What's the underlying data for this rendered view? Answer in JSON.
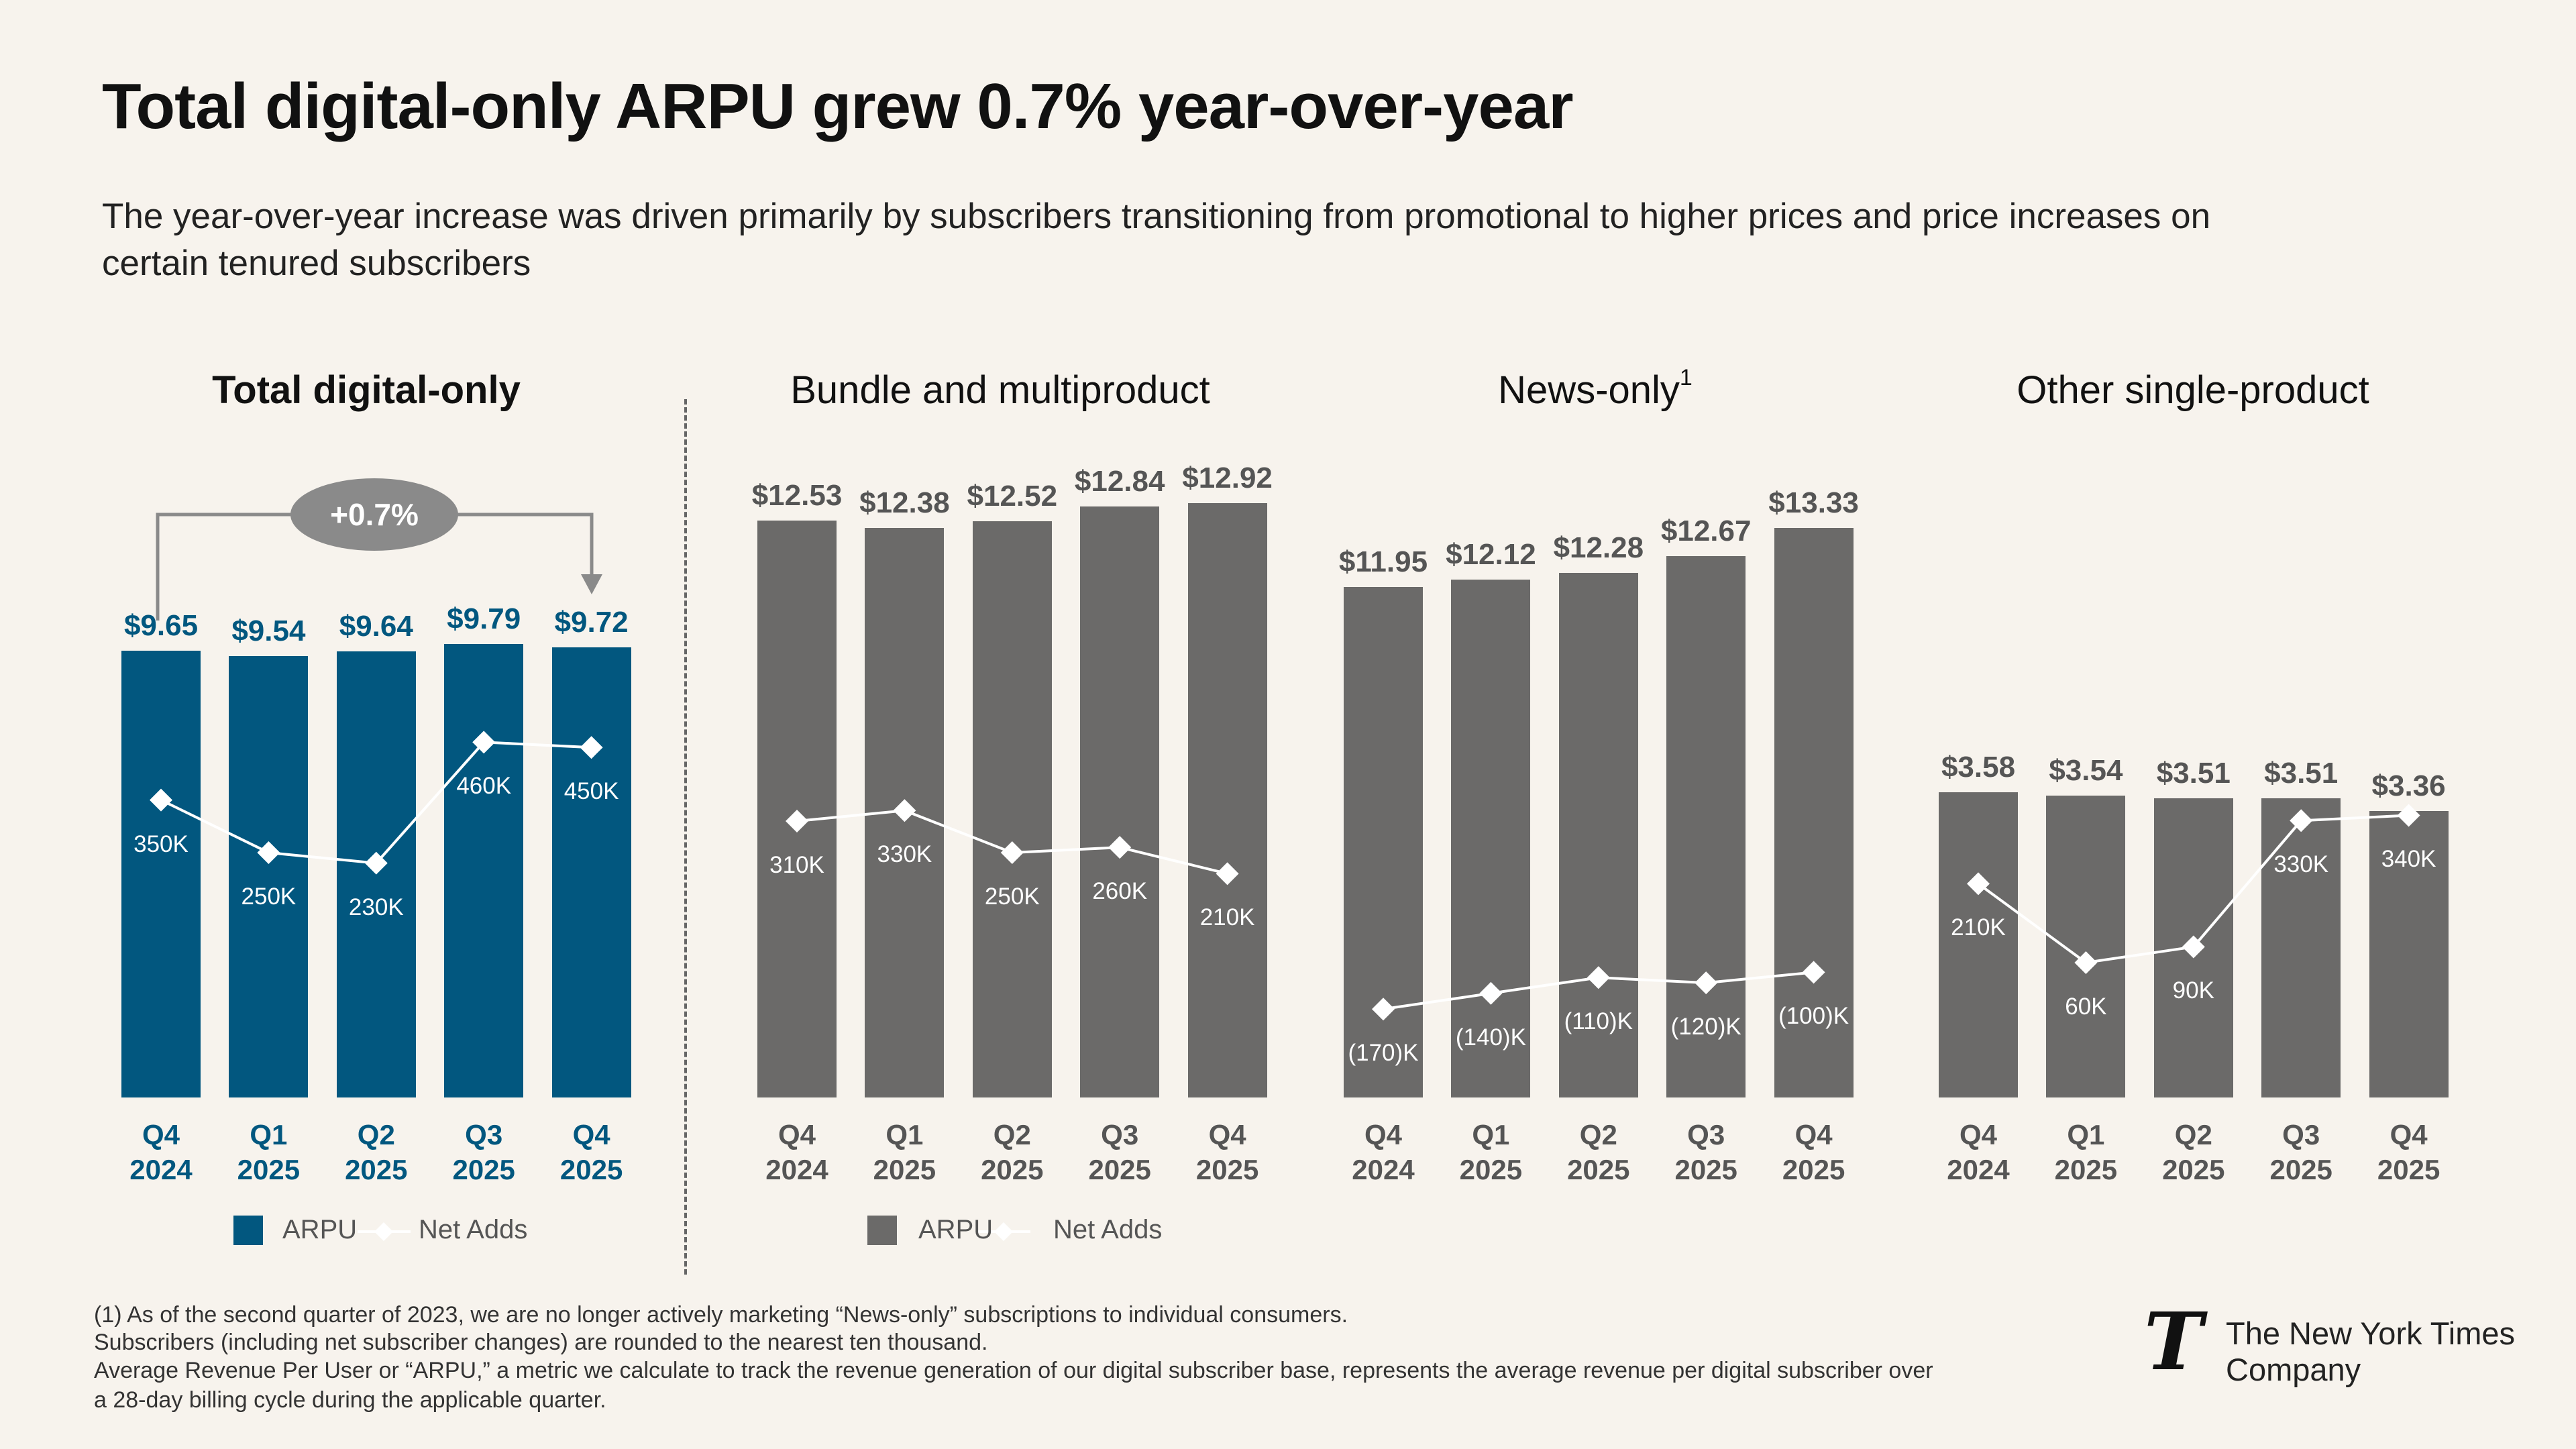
{
  "title": "Total digital-only ARPU grew 0.7% year-over-year",
  "subtitle_lines": [
    "The year-over-year increase was driven primarily by subscribers transitioning from promotional to higher prices and price increases on",
    "certain tenured subscribers"
  ],
  "growth_badge": "+0.7%",
  "legend": {
    "arpu": "ARPU",
    "net_adds": "Net Adds"
  },
  "colors": {
    "total_bars": "#02577f",
    "segment_bars": "#6b6a69",
    "net_adds_line": "#ffffff",
    "background": "#f7f3ed",
    "badge": "#8a8a8a"
  },
  "chart_data": [
    {
      "type": "bar+line",
      "title": "Total digital-only",
      "categories": [
        [
          "Q4",
          "2024"
        ],
        [
          "Q1",
          "2025"
        ],
        [
          "Q2",
          "2025"
        ],
        [
          "Q3",
          "2025"
        ],
        [
          "Q4",
          "2025"
        ]
      ],
      "series": [
        {
          "name": "ARPU",
          "type": "bar",
          "values": [
            9.65,
            9.54,
            9.64,
            9.79,
            9.72
          ],
          "labels": [
            "$9.65",
            "$9.54",
            "$9.64",
            "$9.79",
            "$9.72"
          ]
        },
        {
          "name": "Net Adds",
          "type": "line",
          "unit": "K",
          "values": [
            350,
            250,
            230,
            460,
            450
          ],
          "labels": [
            "350K",
            "250K",
            "230K",
            "460K",
            "450K"
          ]
        }
      ]
    },
    {
      "type": "bar+line",
      "title": "Bundle and multiproduct",
      "categories": [
        [
          "Q4",
          "2024"
        ],
        [
          "Q1",
          "2025"
        ],
        [
          "Q2",
          "2025"
        ],
        [
          "Q3",
          "2025"
        ],
        [
          "Q4",
          "2025"
        ]
      ],
      "series": [
        {
          "name": "ARPU",
          "type": "bar",
          "values": [
            12.53,
            12.38,
            12.52,
            12.84,
            12.92
          ],
          "labels": [
            "$12.53",
            "$12.38",
            "$12.52",
            "$12.84",
            "$12.92"
          ]
        },
        {
          "name": "Net Adds",
          "type": "line",
          "unit": "K",
          "values": [
            310,
            330,
            250,
            260,
            210
          ],
          "labels": [
            "310K",
            "330K",
            "250K",
            "260K",
            "210K"
          ]
        }
      ]
    },
    {
      "type": "bar+line",
      "title": "News-only",
      "title_footnote": "1",
      "categories": [
        [
          "Q4",
          "2024"
        ],
        [
          "Q1",
          "2025"
        ],
        [
          "Q2",
          "2025"
        ],
        [
          "Q3",
          "2025"
        ],
        [
          "Q4",
          "2025"
        ]
      ],
      "series": [
        {
          "name": "ARPU",
          "type": "bar",
          "values": [
            11.95,
            12.12,
            12.28,
            12.67,
            13.33
          ],
          "labels": [
            "$11.95",
            "$12.12",
            "$12.28",
            "$12.67",
            "$13.33"
          ]
        },
        {
          "name": "Net Adds",
          "type": "line",
          "unit": "K",
          "values": [
            -170,
            -140,
            -110,
            -120,
            -100
          ],
          "labels": [
            "(170)K",
            "(140)K",
            "(110)K",
            "(120)K",
            "(100)K"
          ]
        }
      ]
    },
    {
      "type": "bar+line",
      "title": "Other single-product",
      "categories": [
        [
          "Q4",
          "2024"
        ],
        [
          "Q1",
          "2025"
        ],
        [
          "Q2",
          "2025"
        ],
        [
          "Q3",
          "2025"
        ],
        [
          "Q4",
          "2025"
        ]
      ],
      "series": [
        {
          "name": "ARPU",
          "type": "bar",
          "values": [
            3.58,
            3.54,
            3.51,
            3.51,
            3.36
          ],
          "labels": [
            "$3.58",
            "$3.54",
            "$3.51",
            "$3.51",
            "$3.36"
          ]
        },
        {
          "name": "Net Adds",
          "type": "line",
          "unit": "K",
          "values": [
            210,
            60,
            90,
            330,
            340
          ],
          "labels": [
            "210K",
            "60K",
            "90K",
            "330K",
            "340K"
          ]
        }
      ]
    }
  ],
  "footnotes": [
    "(1) As of the second quarter of 2023, we are no longer actively marketing “News-only” subscriptions to individual consumers.",
    "Subscribers (including net subscriber changes) are rounded to the nearest ten thousand.",
    "Average Revenue Per User or “ARPU,” a metric we calculate to track the revenue generation of our digital subscriber base, represents the average revenue per digital subscriber over",
    "a 28-day billing cycle during the applicable quarter."
  ],
  "logo": {
    "glyph": "T",
    "line1": "The New York Times",
    "line2": "Company"
  }
}
